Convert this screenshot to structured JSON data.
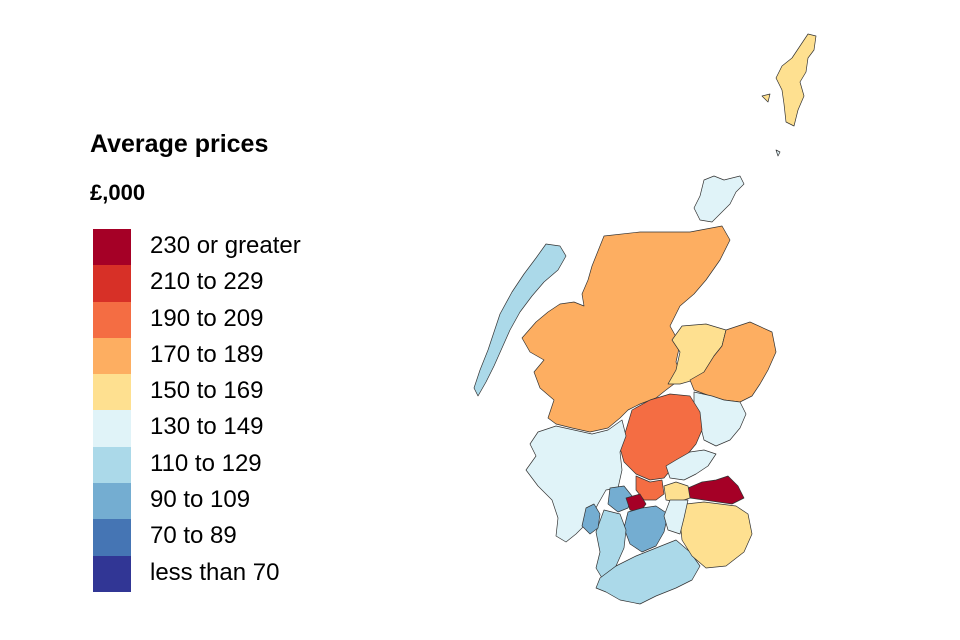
{
  "legend": {
    "title": "Average prices",
    "subtitle": "£,000",
    "items": [
      {
        "label": "230 or greater",
        "color": "#a50026"
      },
      {
        "label": "210 to 229",
        "color": "#d73027"
      },
      {
        "label": "190 to 209",
        "color": "#f46d43"
      },
      {
        "label": "170 to 189",
        "color": "#fdae61"
      },
      {
        "label": "150 to 169",
        "color": "#fee090"
      },
      {
        "label": "130 to 149",
        "color": "#e0f3f8"
      },
      {
        "label": "110 to 129",
        "color": "#abd9e9"
      },
      {
        "label": "90 to 109",
        "color": "#74add1"
      },
      {
        "label": "70 to 89",
        "color": "#4575b4"
      },
      {
        "label": "less than 70",
        "color": "#313695"
      }
    ]
  },
  "map": {
    "name": "Scotland",
    "regions": [
      {
        "id": "shetland",
        "band": 4
      },
      {
        "id": "orkney",
        "band": 5
      },
      {
        "id": "western-isles",
        "band": 6
      },
      {
        "id": "highland",
        "band": 3
      },
      {
        "id": "moray",
        "band": 4
      },
      {
        "id": "aberdeenshire",
        "band": 3
      },
      {
        "id": "angus",
        "band": 5
      },
      {
        "id": "perth-kinross",
        "band": 2
      },
      {
        "id": "argyll-bute",
        "band": 5
      },
      {
        "id": "stirling",
        "band": 2
      },
      {
        "id": "fife",
        "band": 5
      },
      {
        "id": "edinburgh",
        "band": 0
      },
      {
        "id": "west-lothian",
        "band": 4
      },
      {
        "id": "glasgow",
        "band": 7
      },
      {
        "id": "east-dunbartonshire",
        "band": 0
      },
      {
        "id": "lanarkshire",
        "band": 7
      },
      {
        "id": "ayrshire",
        "band": 6
      },
      {
        "id": "arran",
        "band": 7
      },
      {
        "id": "dumfries-galloway",
        "band": 6
      },
      {
        "id": "borders",
        "band": 4
      },
      {
        "id": "midlothian",
        "band": 5
      }
    ]
  }
}
